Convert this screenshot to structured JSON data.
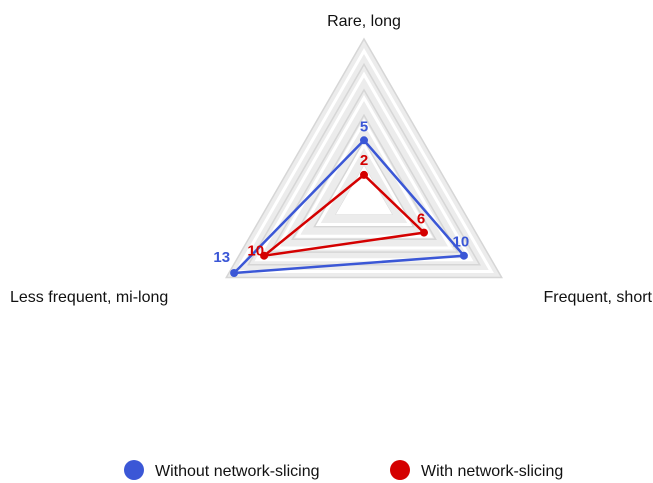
{
  "chart_data": {
    "type": "radar",
    "axes": [
      "Rare, long",
      "Frequent, short",
      "Less frequent, mi-long"
    ],
    "range": [
      0,
      13
    ],
    "grid": true,
    "legend_position": "bottom",
    "series": [
      {
        "name": "Without network-slicing",
        "color": "#3b57d6",
        "values": [
          5,
          10,
          13
        ],
        "labels": [
          "5",
          "10",
          "13"
        ]
      },
      {
        "name": "With network-slicing",
        "color": "#d40000",
        "values": [
          2,
          6,
          10
        ],
        "labels": [
          "2",
          "6",
          "10"
        ]
      }
    ]
  }
}
